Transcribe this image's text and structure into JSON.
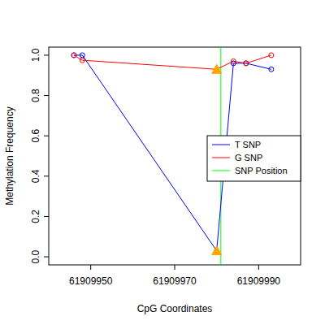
{
  "chart_data": {
    "type": "line",
    "x_label": "CpG Coordinates",
    "y_label": "Methylation Frequency",
    "x": [
      61909946,
      61909948,
      61909980,
      61909984,
      61909987,
      61909993
    ],
    "series": [
      {
        "name": "T SNP",
        "color": "#0000FF",
        "marker": "circle",
        "values": [
          1.0,
          1.0,
          0.03,
          0.96,
          0.96,
          0.93
        ]
      },
      {
        "name": "G SNP",
        "color": "#FF0000",
        "marker": "circle",
        "values": [
          1.0,
          0.975,
          0.93,
          0.97,
          0.96,
          1.0
        ]
      }
    ],
    "snp_position": {
      "name": "SNP Position",
      "color": "#00FF00",
      "x": 61909981
    },
    "xlim": [
      61909940,
      61910000
    ],
    "xticks": [
      61909950,
      61909970,
      61909990
    ],
    "ylim": [
      -0.04,
      1.04
    ],
    "yticks": [
      {
        "value": 0,
        "label": "0.0"
      },
      {
        "value": 0.2,
        "label": "0.2"
      },
      {
        "value": 0.4,
        "label": "0.4"
      },
      {
        "value": 0.6,
        "label": "0.6"
      },
      {
        "value": 0.8,
        "label": "0.8"
      },
      {
        "value": 1,
        "label": "1.0"
      }
    ],
    "legend": "right",
    "grid": false
  }
}
